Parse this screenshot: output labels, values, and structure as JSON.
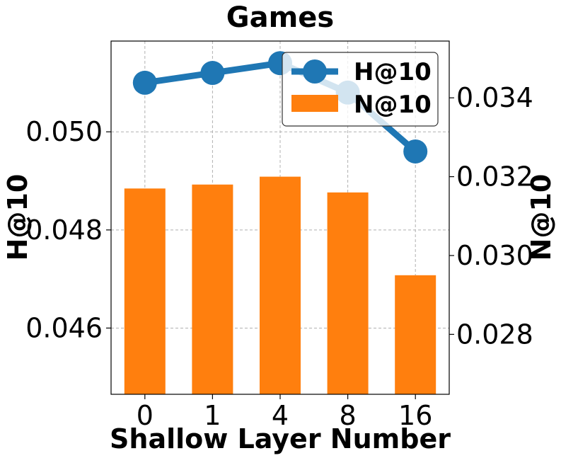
{
  "chart_data": {
    "type": "bar",
    "title": "Games",
    "xlabel": "Shallow Layer Number",
    "ylabel_left": "H@10",
    "ylabel_right": "N@10",
    "categories": [
      "0",
      "1",
      "4",
      "8",
      "16"
    ],
    "series": [
      {
        "name": "H@10",
        "kind": "line",
        "axis": "left",
        "color": "#1f77b4",
        "values": [
          0.051,
          0.0512,
          0.0514,
          0.0508,
          0.0496
        ]
      },
      {
        "name": "N@10",
        "kind": "bar",
        "axis": "right",
        "color": "#ff7f0e",
        "values": [
          0.0317,
          0.0318,
          0.032,
          0.0316,
          0.0295
        ]
      }
    ],
    "ylim_left": [
      0.04465,
      0.05185
    ],
    "ylim_right": [
      0.02648,
      0.03544
    ],
    "yticks_left": [
      "0.046",
      "0.048",
      "0.050"
    ],
    "yticks_right": [
      "0.028",
      "0.030",
      "0.032",
      "0.034"
    ],
    "grid": true,
    "legend_position": "top-right"
  }
}
